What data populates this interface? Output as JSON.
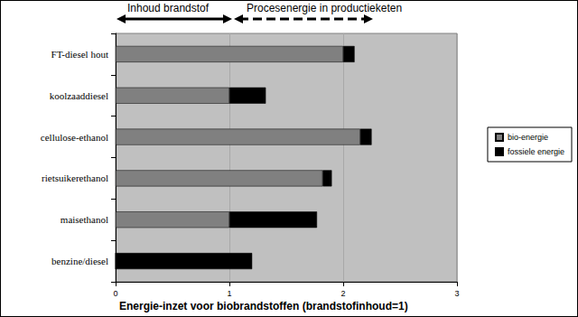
{
  "chart_data": {
    "type": "bar",
    "orientation": "horizontal",
    "stacked": true,
    "title": "Energie-inzet voor biobrandstoffen (brandstofinhoud=1)",
    "annotations": [
      "Inhoud brandstof",
      "Procesenergie in productieketen"
    ],
    "categories": [
      "FT-diesel hout",
      "koolzaaddiesel",
      "cellulose-ethanol",
      "rietsuikerethanol",
      "maisethanol",
      "benzine/diesel"
    ],
    "series": [
      {
        "name": "bio-energie",
        "color": "#808080",
        "values": [
          2.0,
          1.0,
          2.15,
          1.82,
          1.0,
          0
        ]
      },
      {
        "name": "fossiele energie",
        "color": "#000000",
        "values": [
          0.1,
          0.32,
          0.1,
          0.08,
          0.77,
          1.2
        ]
      }
    ],
    "xlim": [
      0,
      3
    ],
    "xticks": [
      0,
      1,
      2,
      3
    ],
    "grid": true,
    "legend": "right"
  }
}
